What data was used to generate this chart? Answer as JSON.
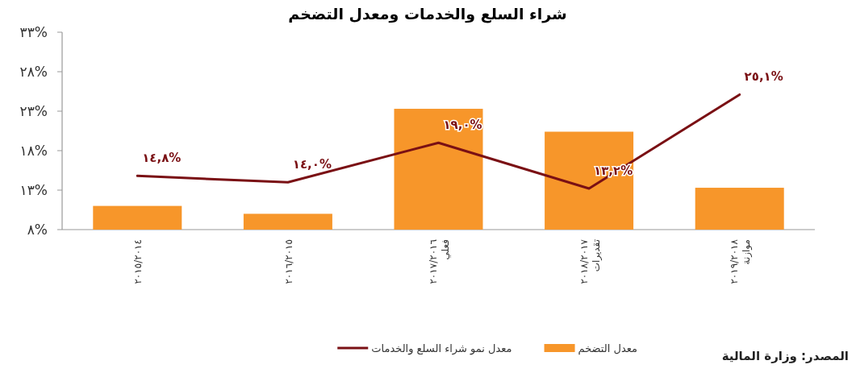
{
  "chart_data": {
    "type": "bar",
    "title": "شراء السلع والخدمات ومعدل التضخم",
    "categories": [
      "٢٠١٥/٢٠١٤",
      "٢٠١٦/٢٠١٥",
      "٢٠١٧/٢٠١٦ فعلي",
      "٢٠١٨/٢٠١٧ تقديرات",
      "٢٠١٩/٢٠١٨ موازنة"
    ],
    "series": [
      {
        "name": "معدل التضخم",
        "color": "#f7962a",
        "values": [
          11.0,
          10.0,
          23.3,
          20.4,
          13.3
        ]
      },
      {
        "name": "معدل نمو شراء السلع والخدمات",
        "type": "line",
        "color": "#7a1014",
        "values": [
          14.8,
          14.0,
          19.0,
          13.2,
          25.1
        ],
        "value_labels": [
          "١٤,٨%",
          "١٤,٠%",
          "١٩,٠%",
          "١٣,٢%",
          "٢٥,١%"
        ]
      }
    ],
    "ylim": [
      8,
      33
    ],
    "yticks": [
      {
        "value": 8,
        "label": "٨%"
      },
      {
        "value": 13,
        "label": "١٣%"
      },
      {
        "value": 18,
        "label": "١٨%"
      },
      {
        "value": 23,
        "label": "٢٣%"
      },
      {
        "value": 28,
        "label": "٢٨%"
      },
      {
        "value": 33,
        "label": "٣٣%"
      }
    ],
    "grid": false,
    "legend": "bottom",
    "annotations": [
      "المصدر: وزارة المالية"
    ]
  }
}
